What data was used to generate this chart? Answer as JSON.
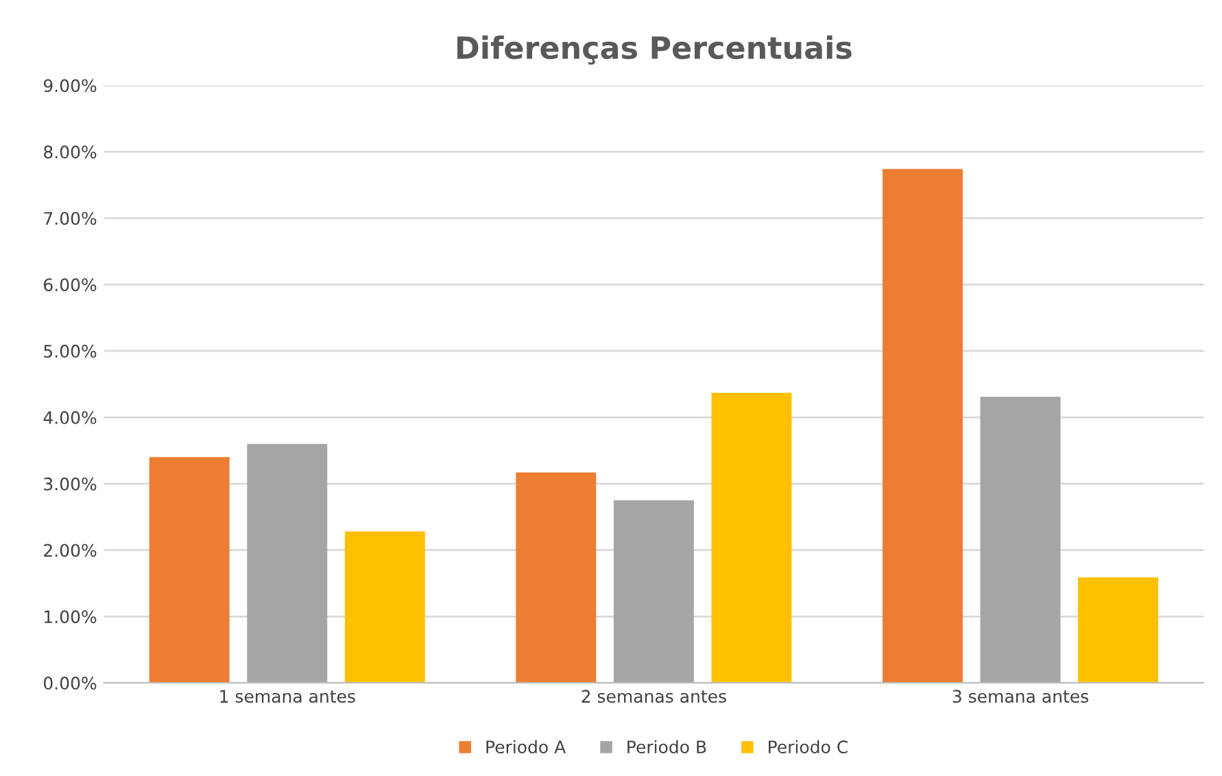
{
  "chart_data": {
    "type": "bar",
    "title": "Diferenças Percentuais",
    "categories": [
      "1 semana antes",
      "2 semanas antes",
      "3 semana antes"
    ],
    "series": [
      {
        "name": "Periodo A",
        "color": "#ed7d31",
        "values": [
          3.4,
          3.17,
          7.74
        ]
      },
      {
        "name": "Periodo B",
        "color": "#a5a5a5",
        "values": [
          3.6,
          2.75,
          4.31
        ]
      },
      {
        "name": "Periodo C",
        "color": "#ffc000",
        "values": [
          2.28,
          4.37,
          1.59
        ]
      }
    ],
    "ylim": [
      0,
      9
    ],
    "yticks": [
      {
        "value": 0,
        "label": "0.00%"
      },
      {
        "value": 1,
        "label": "1.00%"
      },
      {
        "value": 2,
        "label": "2.00%"
      },
      {
        "value": 3,
        "label": "3.00%"
      },
      {
        "value": 4,
        "label": "4.00%"
      },
      {
        "value": 5,
        "label": "5.00%"
      },
      {
        "value": 6,
        "label": "6.00%"
      },
      {
        "value": 7,
        "label": "7.00%"
      },
      {
        "value": 8,
        "label": "8.00%"
      },
      {
        "value": 9,
        "label": "9.00%"
      }
    ],
    "grid": "y",
    "legend": "bottom"
  }
}
